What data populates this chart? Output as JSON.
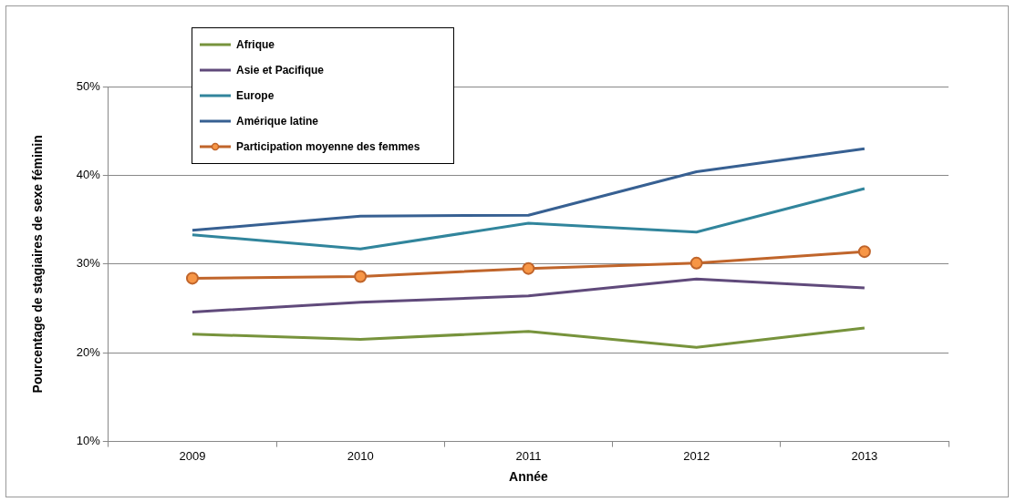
{
  "chart_data": {
    "type": "line",
    "xlabel": "Année",
    "ylabel": "Pourcentage de stagiaires de sexe féminin",
    "categories": [
      "2009",
      "2010",
      "2011",
      "2012",
      "2013"
    ],
    "series": [
      {
        "name": "Afrique",
        "color": "#77933c",
        "values": [
          22.1,
          21.5,
          22.4,
          20.6,
          22.8
        ],
        "marker": "none"
      },
      {
        "name": "Asie et Pacifique",
        "color": "#604a7b",
        "values": [
          24.6,
          25.7,
          26.4,
          28.3,
          27.3
        ],
        "marker": "none"
      },
      {
        "name": "Europe",
        "color": "#31859c",
        "values": [
          33.3,
          31.7,
          34.6,
          33.6,
          38.5
        ],
        "marker": "none"
      },
      {
        "name": "Amérique latine",
        "color": "#376092",
        "values": [
          33.8,
          35.4,
          35.5,
          40.4,
          43.0
        ],
        "marker": "none"
      },
      {
        "name": "Participation moyenne des femmes",
        "color": "#c0652b",
        "values": [
          28.4,
          28.6,
          29.5,
          30.1,
          31.4
        ],
        "marker": "circle"
      }
    ],
    "ylim": [
      10,
      50
    ],
    "yticks": [
      {
        "value": 10,
        "label": "10%"
      },
      {
        "value": 20,
        "label": "20%"
      },
      {
        "value": 30,
        "label": "30%"
      },
      {
        "value": 40,
        "label": "40%"
      },
      {
        "value": 50,
        "label": "50%"
      }
    ],
    "grid": "y",
    "legend": "top left",
    "line_style": "solid"
  }
}
